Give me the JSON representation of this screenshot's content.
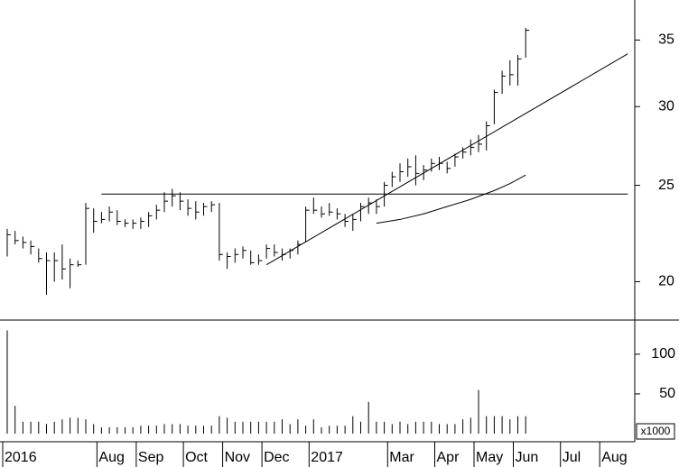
{
  "chart_data": {
    "type": "ohlc",
    "color": "#000000",
    "log_scale": true,
    "categories": [
      "2016",
      null,
      null,
      null,
      null,
      null,
      null,
      null,
      null,
      null,
      null,
      null,
      "Aug",
      null,
      null,
      null,
      null,
      "Sep",
      null,
      null,
      null,
      null,
      null,
      "Oct",
      null,
      null,
      null,
      null,
      "Nov",
      null,
      null,
      null,
      null,
      "Dec",
      null,
      null,
      null,
      null,
      null,
      "2017",
      null,
      null,
      null,
      null,
      null,
      null,
      null,
      null,
      null,
      "Mar",
      null,
      null,
      null,
      null,
      null,
      "Apr",
      null,
      null,
      null,
      null,
      "May",
      null,
      null,
      null,
      null,
      "Jun",
      null,
      null,
      null,
      null,
      null,
      "Jul",
      null,
      null,
      null,
      null,
      "Aug",
      null,
      null,
      null
    ],
    "high": [
      22.6,
      22.5,
      22.2,
      22.0,
      21.6,
      21.4,
      21.4,
      21.8,
      21.1,
      21.0,
      24.0,
      23.7,
      23.5,
      23.8,
      23.6,
      23.1,
      23.1,
      23.2,
      23.5,
      23.9,
      24.6,
      24.8,
      24.6,
      24.2,
      24.1,
      24.0,
      24.1,
      24.0,
      21.4,
      21.6,
      21.7,
      21.5,
      21.3,
      21.8,
      21.8,
      21.6,
      21.6,
      22.0,
      23.8,
      24.3,
      23.8,
      24.0,
      23.7,
      23.4,
      23.4,
      24.0,
      24.3,
      24.2,
      25.2,
      25.8,
      26.3,
      26.6,
      26.8,
      26.2,
      26.6,
      26.7,
      26.4,
      26.9,
      27.3,
      27.8,
      28.1,
      29.0,
      31.2,
      32.6,
      33.4,
      33.8,
      36.0,
      null,
      null,
      null,
      null,
      null,
      null,
      null,
      null,
      null,
      null,
      null,
      null,
      null
    ],
    "low": [
      21.2,
      21.8,
      21.6,
      21.3,
      20.9,
      19.4,
      20.0,
      20.1,
      19.7,
      20.7,
      20.8,
      22.4,
      22.9,
      23.0,
      22.8,
      22.7,
      22.6,
      22.6,
      22.7,
      23.1,
      23.5,
      23.8,
      23.6,
      23.3,
      23.1,
      23.3,
      23.5,
      21.0,
      20.6,
      20.9,
      21.1,
      20.8,
      20.8,
      21.1,
      21.2,
      21.0,
      21.1,
      21.3,
      21.9,
      23.4,
      23.2,
      23.3,
      23.1,
      22.7,
      22.5,
      23.0,
      23.4,
      23.4,
      23.8,
      24.9,
      25.2,
      25.5,
      25.0,
      25.3,
      25.8,
      25.9,
      25.7,
      26.1,
      26.6,
      26.8,
      27.0,
      27.1,
      28.8,
      30.9,
      31.5,
      31.5,
      33.6,
      null,
      null,
      null,
      null,
      null,
      null,
      null,
      null,
      null,
      null,
      null,
      null,
      null
    ],
    "close": [
      22.3,
      22.0,
      21.9,
      21.7,
      21.1,
      21.0,
      21.0,
      20.6,
      20.8,
      20.8,
      23.7,
      23.0,
      23.1,
      23.5,
      23.0,
      22.9,
      22.9,
      23.0,
      23.3,
      23.6,
      24.1,
      24.4,
      24.1,
      23.7,
      23.5,
      23.8,
      23.9,
      21.3,
      21.2,
      21.3,
      21.5,
      20.9,
      21.0,
      21.6,
      21.4,
      21.3,
      21.5,
      21.8,
      23.6,
      23.6,
      23.4,
      23.5,
      23.4,
      23.0,
      23.1,
      23.8,
      24.0,
      23.8,
      25.0,
      25.5,
      25.8,
      26.1,
      25.7,
      25.9,
      26.3,
      26.3,
      26.0,
      26.7,
      27.0,
      27.3,
      27.5,
      28.7,
      31.0,
      32.2,
      32.3,
      33.5,
      35.8,
      null,
      null,
      null,
      null,
      null,
      null,
      null,
      null,
      null,
      null,
      null,
      null,
      null
    ],
    "volume": [
      130,
      35,
      15,
      15,
      15,
      12,
      15,
      18,
      20,
      20,
      18,
      12,
      8,
      8,
      8,
      8,
      8,
      10,
      10,
      10,
      12,
      12,
      12,
      10,
      10,
      10,
      10,
      22,
      20,
      15,
      15,
      15,
      15,
      15,
      15,
      18,
      12,
      18,
      10,
      18,
      8,
      10,
      10,
      10,
      22,
      15,
      40,
      15,
      15,
      12,
      15,
      12,
      15,
      15,
      15,
      12,
      12,
      12,
      18,
      20,
      55,
      22,
      22,
      22,
      18,
      22,
      22,
      null,
      null,
      null,
      null,
      null,
      null,
      null,
      null,
      null,
      null,
      null,
      null,
      null
    ],
    "ylim": [
      18.3,
      38.4
    ],
    "yticks": [
      20,
      25,
      30,
      35
    ],
    "volume_ylim": [
      0,
      143
    ],
    "volume_yticks": [
      50,
      100
    ],
    "volume_unit_label": "x1000",
    "trend_lines": [
      {
        "x": [
          12,
          79
        ],
        "y": [
          24.5,
          24.5
        ]
      },
      {
        "x": [
          33,
          79
        ],
        "y": [
          20.8,
          33.9
        ]
      },
      {
        "x": [
          47,
          50,
          53,
          56,
          59,
          62,
          64,
          66
        ],
        "y": [
          22.9,
          23.1,
          23.4,
          23.8,
          24.2,
          24.7,
          25.1,
          25.6
        ]
      }
    ]
  }
}
